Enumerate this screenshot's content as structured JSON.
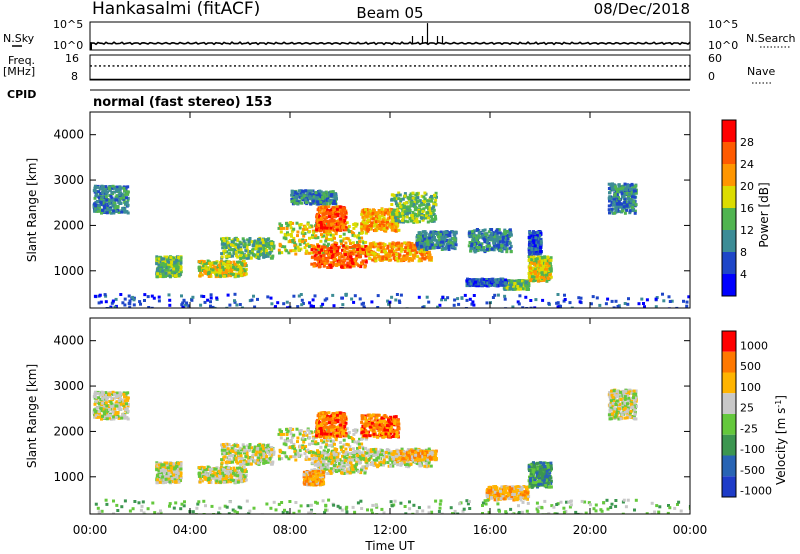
{
  "header": {
    "station": "Hankasalmi (fitACF)",
    "beam": "Beam 05",
    "date": "08/Dec/2018"
  },
  "chart_data": [
    {
      "type": "line",
      "name": "noise-panel",
      "left_label": "N.Sky",
      "left_ticks": [
        "10^5",
        "10^0"
      ],
      "right_label": "N.Search",
      "right_ticks": [
        "10^5",
        "10^0"
      ],
      "ylim_log10": [
        0,
        5
      ],
      "baseline_log10": 1.2,
      "spikes_hours": [
        12.9,
        13.3,
        13.5,
        13.9,
        14.1
      ],
      "spike_hour_tall": 13.5
    },
    {
      "type": "line",
      "name": "frequency-panel",
      "left_label": "Freq.",
      "left_unit": "[MHz]",
      "left_ticks": [
        "16",
        "8"
      ],
      "right_label": "Nave",
      "right_ticks": [
        "60",
        "0"
      ],
      "freq_mhz": 12.5,
      "nave": 38
    },
    {
      "type": "table",
      "name": "cpid-panel",
      "label": "CPID",
      "text": "normal (fast stereo) 153"
    },
    {
      "type": "heatmap",
      "name": "power-panel",
      "ylabel": "Slant Range [km]",
      "yticks": [
        "4000",
        "3000",
        "2000",
        "1000"
      ],
      "ylim": [
        180,
        4500
      ],
      "colorbar_label": "Power [dB]",
      "colorbar_ticks": [
        "28",
        "24",
        "20",
        "16",
        "12",
        "8",
        "4"
      ],
      "colors": [
        "#0000ff",
        "#1e46c8",
        "#3c8c96",
        "#50b450",
        "#dcdc00",
        "#ff9600",
        "#ff5a00",
        "#ff0000"
      ],
      "patches": [
        {
          "t0": 0.1,
          "t1": 1.5,
          "r0": 2300,
          "r1": 2900,
          "level": 2
        },
        {
          "t0": 2.6,
          "t1": 3.6,
          "r0": 900,
          "r1": 1350,
          "level": 3
        },
        {
          "t0": 4.3,
          "t1": 6.2,
          "r0": 900,
          "r1": 1250,
          "level": 4
        },
        {
          "t0": 5.2,
          "t1": 7.3,
          "r0": 1300,
          "r1": 1750,
          "level": 3
        },
        {
          "t0": 7.5,
          "t1": 11.0,
          "r0": 1400,
          "r1": 2100,
          "level": 4
        },
        {
          "t0": 8.8,
          "t1": 11.0,
          "r0": 1100,
          "r1": 1600,
          "level": 6
        },
        {
          "t0": 9.0,
          "t1": 10.2,
          "r0": 1900,
          "r1": 2450,
          "level": 6
        },
        {
          "t0": 8.0,
          "t1": 9.8,
          "r0": 2500,
          "r1": 2800,
          "level": 2
        },
        {
          "t0": 10.8,
          "t1": 12.3,
          "r0": 1900,
          "r1": 2400,
          "level": 5
        },
        {
          "t0": 11.0,
          "t1": 13.6,
          "r0": 1250,
          "r1": 1650,
          "level": 5
        },
        {
          "t0": 12.0,
          "t1": 13.8,
          "r0": 2100,
          "r1": 2750,
          "level": 3
        },
        {
          "t0": 13.0,
          "t1": 14.6,
          "r0": 1500,
          "r1": 1900,
          "level": 2
        },
        {
          "t0": 15.1,
          "t1": 16.8,
          "r0": 1450,
          "r1": 1950,
          "level": 2
        },
        {
          "t0": 16.5,
          "t1": 17.5,
          "r0": 620,
          "r1": 820,
          "level": 3
        },
        {
          "t0": 15.0,
          "t1": 16.6,
          "r0": 700,
          "r1": 850,
          "level": 1
        },
        {
          "t0": 17.5,
          "t1": 18.4,
          "r0": 800,
          "r1": 1350,
          "level": 4
        },
        {
          "t0": 17.5,
          "t1": 18.0,
          "r0": 1400,
          "r1": 1900,
          "level": 1
        },
        {
          "t0": 20.7,
          "t1": 21.8,
          "r0": 2300,
          "r1": 2950,
          "level": 2
        },
        {
          "t0": 0.0,
          "t1": 24.0,
          "r0": 180,
          "r1": 520,
          "level": 1
        }
      ]
    },
    {
      "type": "heatmap",
      "name": "velocity-panel",
      "ylabel": "Slant Range [km]",
      "yticks": [
        "4000",
        "3000",
        "2000",
        "1000"
      ],
      "ylim": [
        180,
        4500
      ],
      "xlabel": "Time UT",
      "xticks": [
        "00:00",
        "04:00",
        "08:00",
        "12:00",
        "16:00",
        "20:00",
        "00:00"
      ],
      "xlim_hours": [
        0,
        24
      ],
      "colorbar_label": "Velocity [m s-1]",
      "colorbar_ticks": [
        "1000",
        "500",
        "100",
        "25",
        "-25",
        "-100",
        "-500",
        "-1000"
      ],
      "colors": [
        "#1e3cc8",
        "#2864b4",
        "#3c9650",
        "#64c83c",
        "#c8c8c8",
        "#ffb400",
        "#ff7800",
        "#ff0000"
      ],
      "patches": [
        {
          "t0": 0.1,
          "t1": 1.5,
          "r0": 2300,
          "r1": 2900,
          "level": 4
        },
        {
          "t0": 2.6,
          "t1": 3.6,
          "r0": 900,
          "r1": 1350,
          "level": 4
        },
        {
          "t0": 4.3,
          "t1": 6.2,
          "r0": 900,
          "r1": 1250,
          "level": 4
        },
        {
          "t0": 5.2,
          "t1": 7.3,
          "r0": 1300,
          "r1": 1750,
          "level": 4
        },
        {
          "t0": 7.5,
          "t1": 11.0,
          "r0": 1400,
          "r1": 2100,
          "level": 4
        },
        {
          "t0": 8.8,
          "t1": 11.0,
          "r0": 1100,
          "r1": 1600,
          "level": 4
        },
        {
          "t0": 9.0,
          "t1": 10.2,
          "r0": 1900,
          "r1": 2450,
          "level": 6
        },
        {
          "t0": 10.8,
          "t1": 12.3,
          "r0": 1900,
          "r1": 2400,
          "level": 6
        },
        {
          "t0": 11.0,
          "t1": 13.6,
          "r0": 1250,
          "r1": 1650,
          "level": 4
        },
        {
          "t0": 12.0,
          "t1": 13.8,
          "r0": 1400,
          "r1": 1600,
          "level": 5
        },
        {
          "t0": 8.5,
          "t1": 9.3,
          "r0": 850,
          "r1": 1150,
          "level": 5
        },
        {
          "t0": 15.8,
          "t1": 17.5,
          "r0": 520,
          "r1": 820,
          "level": 5
        },
        {
          "t0": 17.5,
          "t1": 18.4,
          "r0": 800,
          "r1": 1350,
          "level": 2
        },
        {
          "t0": 20.7,
          "t1": 21.8,
          "r0": 2300,
          "r1": 2950,
          "level": 4
        },
        {
          "t0": 0.0,
          "t1": 24.0,
          "r0": 180,
          "r1": 520,
          "level": 3
        }
      ]
    }
  ]
}
